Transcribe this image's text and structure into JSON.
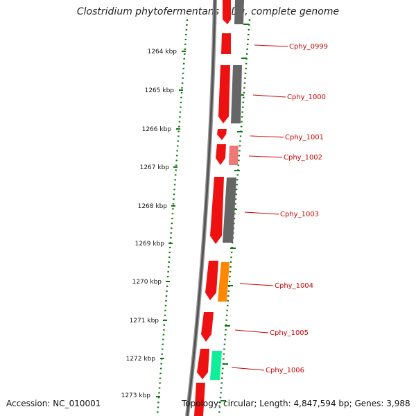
{
  "title": "Clostridium phytofermentans ISDg, complete genome",
  "footer": {
    "accession": "Accession: NC_010001",
    "summary": "Topology: circular; Length: 4,847,594 bp; Genes: 3,988"
  },
  "colors": {
    "forward_cds": "#ee1111",
    "reverse_cds_gray": "#666666",
    "reverse_cds_pink": "#ee7777",
    "reverse_cds_orange": "#ff8800",
    "reverse_cds_green": "#11ee99",
    "tick_green": "#117711",
    "label_red": "#cc0000"
  },
  "scale_labels": [
    "1264 kbp",
    "1265 kbp",
    "1266 kbp",
    "1267 kbp",
    "1268 kbp",
    "1269 kbp",
    "1270 kbp",
    "1271 kbp",
    "1272 kbp",
    "1273 kbp"
  ],
  "gene_labels": [
    "Cphy_0999",
    "Cphy_1000",
    "Cphy_1001",
    "Cphy_1002",
    "Cphy_1003",
    "Cphy_1004",
    "Cphy_1005",
    "Cphy_1006"
  ]
}
